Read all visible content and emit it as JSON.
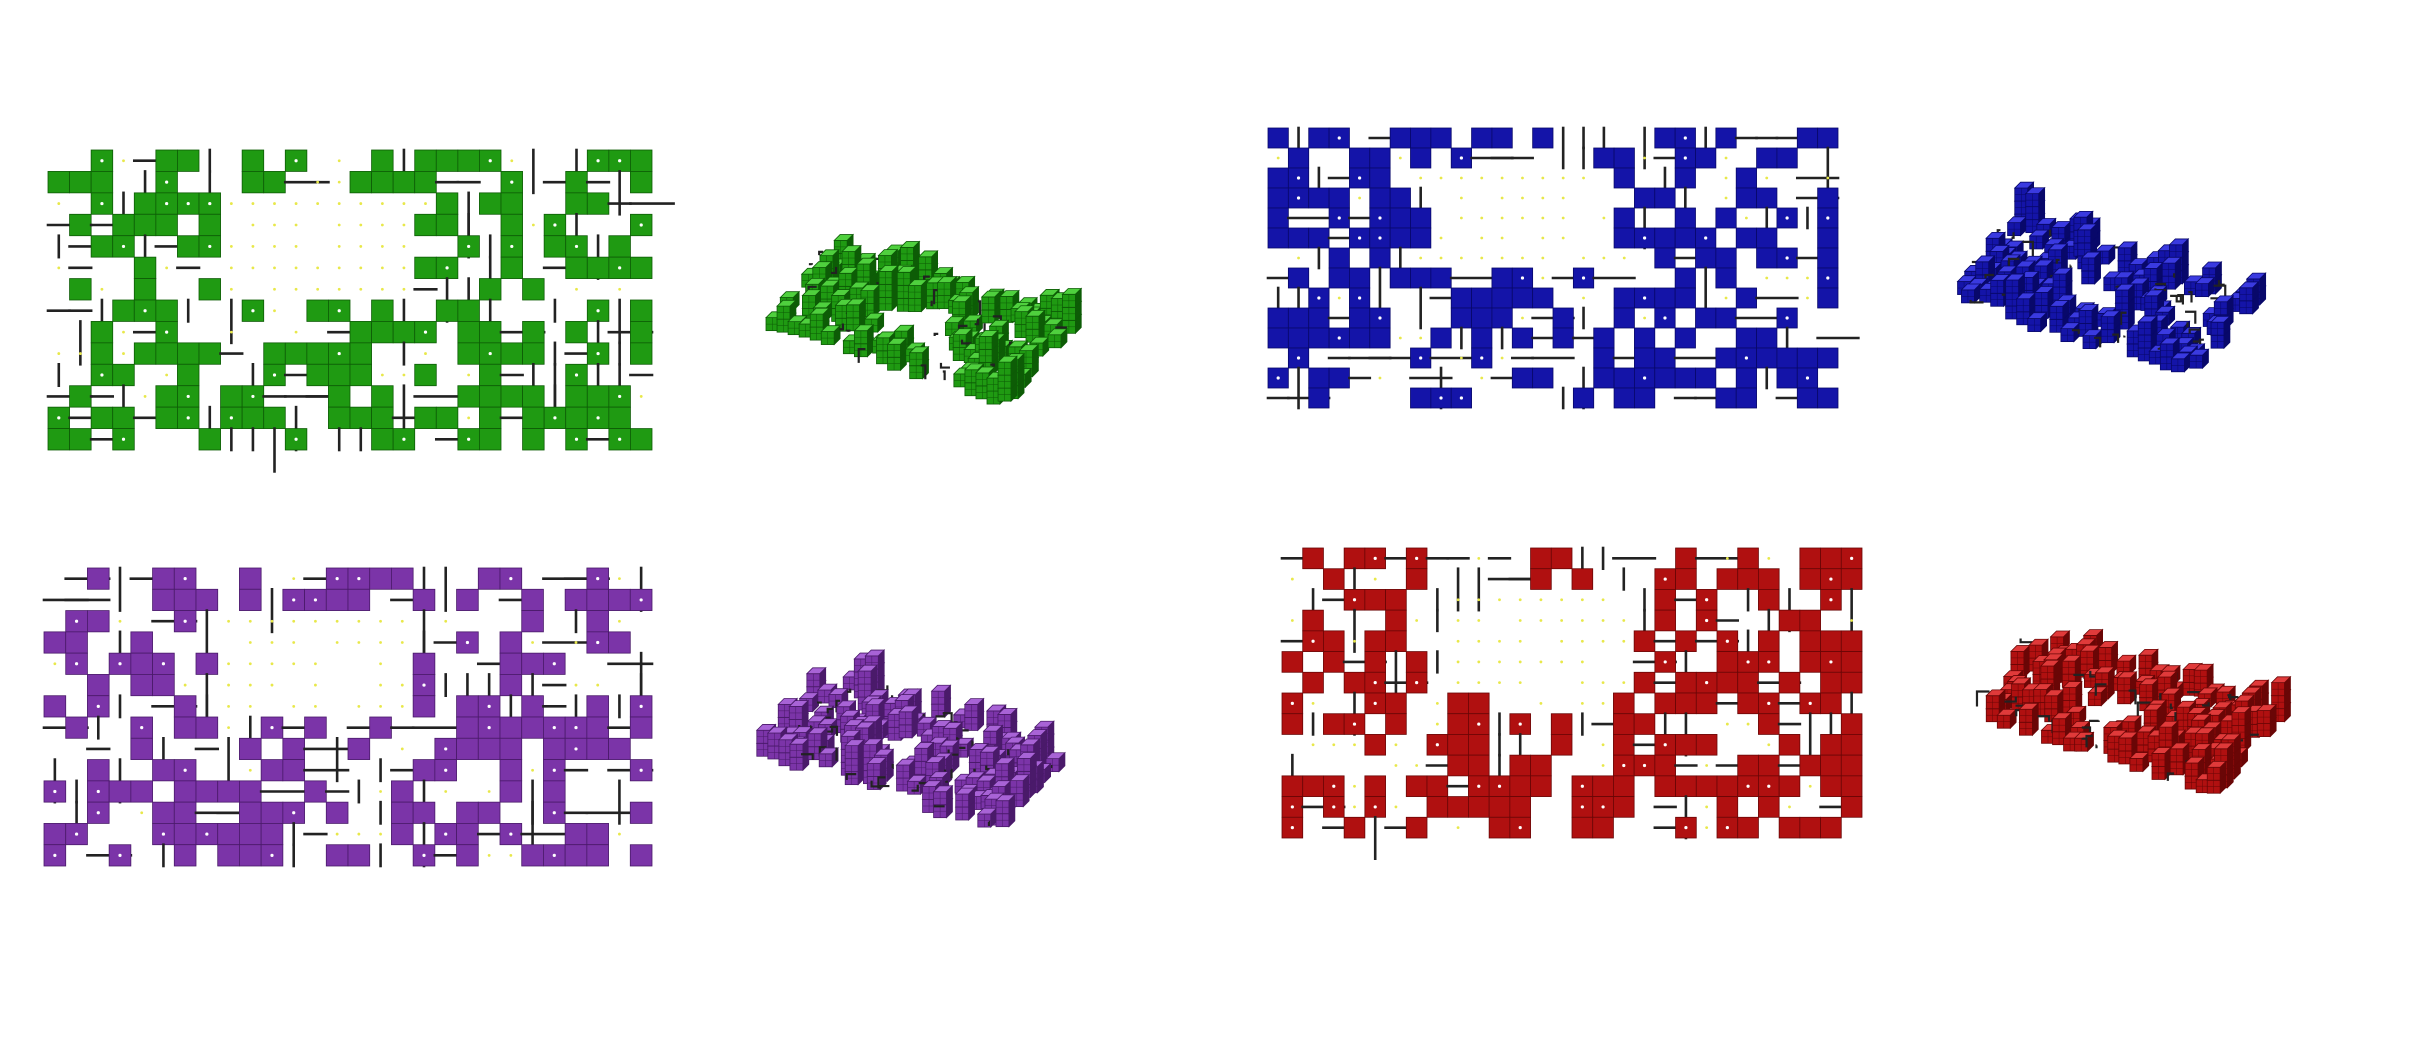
{
  "figure": {
    "panels": [
      {
        "id": "green-top-view",
        "view": "top",
        "color": "#1f9a12",
        "light": "#4fd03e",
        "dark": "#0d5c06",
        "seed": 11
      },
      {
        "id": "green-3d-view",
        "view": "iso",
        "color": "#1f9a12",
        "light": "#4fd03e",
        "dark": "#0d5c06",
        "seed": 12
      },
      {
        "id": "blue-top-view",
        "view": "top",
        "color": "#1414a8",
        "light": "#3a3ae0",
        "dark": "#08086a",
        "seed": 21
      },
      {
        "id": "blue-3d-view",
        "view": "iso",
        "color": "#1414a8",
        "light": "#3a3ae0",
        "dark": "#08086a",
        "seed": 22
      },
      {
        "id": "purple-top-view",
        "view": "top",
        "color": "#7b34a8",
        "light": "#a863d6",
        "dark": "#4a1a6a",
        "seed": 31
      },
      {
        "id": "purple-3d-view",
        "view": "iso",
        "color": "#7b34a8",
        "light": "#a863d6",
        "dark": "#4a1a6a",
        "seed": 32
      },
      {
        "id": "red-top-view",
        "view": "top",
        "color": "#b01010",
        "light": "#e03a3a",
        "dark": "#6a0606",
        "seed": 41
      },
      {
        "id": "red-3d-view",
        "view": "iso",
        "color": "#b01010",
        "light": "#e03a3a",
        "dark": "#6a0606",
        "seed": 42
      }
    ],
    "wire_color": "#222222",
    "dot_color": "#e8e84a"
  }
}
